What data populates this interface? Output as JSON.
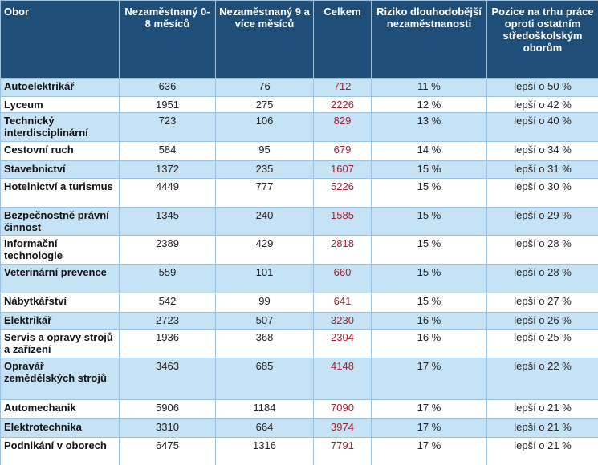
{
  "table": {
    "header": [
      "Obor",
      "Nezaměstnaný 0-8 měsíců",
      "Nezaměstnaný 9 a více měsíců",
      "Celkem",
      "Riziko dlouhodobější nezaměstnanosti",
      "Pozice na trhu práce oproti ostatním středoškolským oborům"
    ],
    "rows": [
      [
        "Autoelektrikář",
        "636",
        "76",
        "712",
        "11 %",
        "lepší o 50 %"
      ],
      [
        "Lyceum",
        "1951",
        "275",
        "2226",
        "12 %",
        "lepší o 42 %"
      ],
      [
        "Technický interdisciplinární",
        "723",
        "106",
        "829",
        "13 %",
        "lepší o 40 %"
      ],
      [
        "Cestovní ruch",
        "584",
        "95",
        "679",
        "14 %",
        "lepší o 34 %"
      ],
      [
        "Stavebnictví",
        "1372",
        "235",
        "1607",
        "15 %",
        "lepší o 31 %"
      ],
      [
        "Hotelnictví a turismus",
        "4449",
        "777",
        "5226",
        "15 %",
        "lepší o 30 %"
      ],
      [
        "Bezpečnostně právní činnost",
        "1345",
        "240",
        "1585",
        "15 %",
        "lepší o 29 %"
      ],
      [
        "Informační technologie",
        "2389",
        "429",
        "2818",
        "15 %",
        "lepší o 28 %"
      ],
      [
        "Veterinární prevence",
        "559",
        "101",
        "660",
        "15 %",
        "lepší o 28 %"
      ],
      [
        "Nábytkářství",
        "542",
        "99",
        "641",
        "15 %",
        "lepší o 27 %"
      ],
      [
        "Elektrikář",
        "2723",
        "507",
        "3230",
        "16 %",
        "lepší o 26 %"
      ],
      [
        "Servis a opravy strojů a zařízení",
        "1936",
        "368",
        "2304",
        "16 %",
        "lepší o 25 %"
      ],
      [
        "Opravář zemědělských strojů",
        "3463",
        "685",
        "4148",
        "17 %",
        "lepší o 22 %"
      ],
      [
        "Automechanik",
        "5906",
        "1184",
        "7090",
        "17 %",
        "lepší o 21 %"
      ],
      [
        "Elektrotechnika",
        "3310",
        "664",
        "3974",
        "17 %",
        "lepší o 21 %"
      ],
      [
        "Podnikání v oborech",
        "6475",
        "1316",
        "7791",
        "17 %",
        "lepší o 21 %"
      ]
    ]
  }
}
